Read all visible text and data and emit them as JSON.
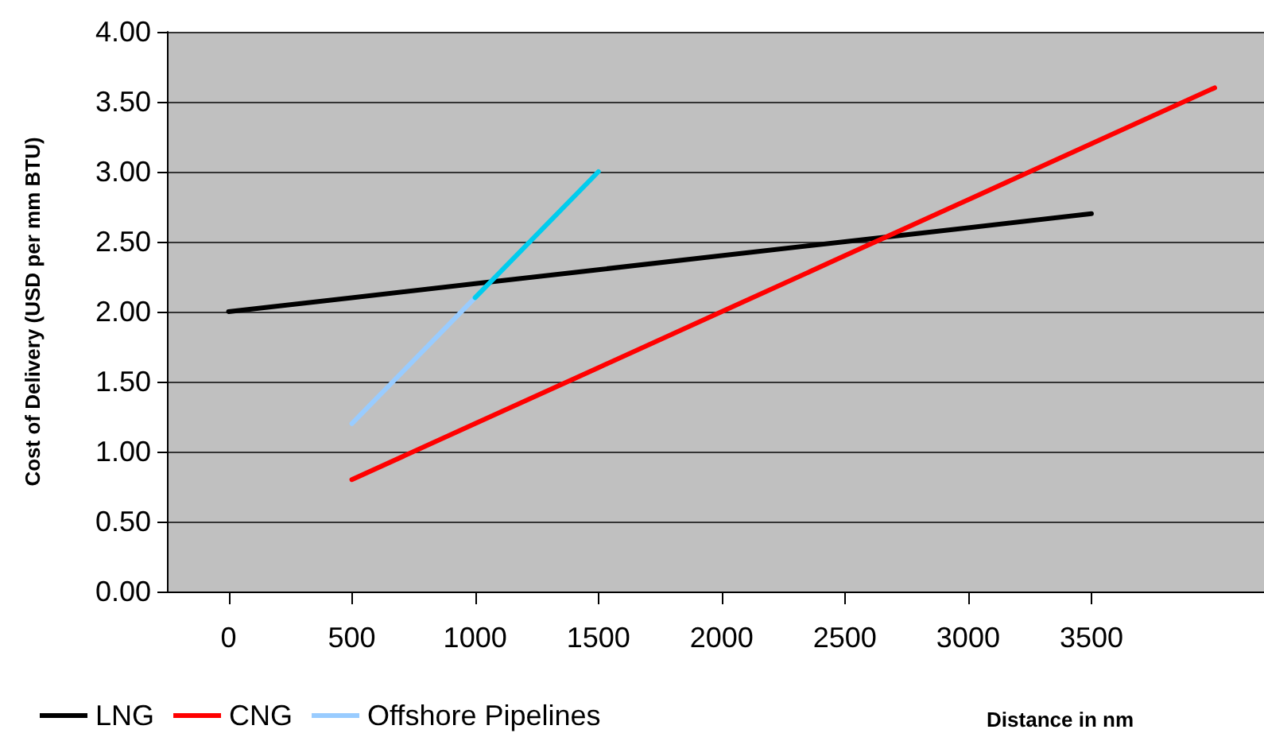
{
  "chart_data": {
    "type": "line",
    "xlabel": "Distance in nm",
    "ylabel": "Cost of Delivery (USD per mm BTU)",
    "series": [
      {
        "name": "LNG",
        "color": "#000000",
        "x": [
          0,
          500,
          1000,
          1500,
          2000,
          2500,
          3000,
          3500
        ],
        "values": [
          2.0,
          2.1,
          2.2,
          2.3,
          2.4,
          2.5,
          2.6,
          2.7
        ]
      },
      {
        "name": "CNG",
        "color": "#ff0000",
        "x": [
          500,
          1000,
          1500,
          2000,
          2500,
          3000,
          3500,
          4000
        ],
        "values": [
          0.8,
          1.2,
          1.6,
          2.0,
          2.4,
          2.8,
          3.2,
          3.6
        ]
      },
      {
        "name": "Offshore Pipelines",
        "color": "#99ccff",
        "x": [
          500,
          1000
        ],
        "values": [
          1.2,
          2.1
        ]
      },
      {
        "color": "#00ccee",
        "x": [
          1000,
          1500
        ],
        "values": [
          2.1,
          3.0
        ]
      }
    ],
    "xlim": [
      -250,
      4200
    ],
    "xticks": [
      0,
      500,
      1000,
      1500,
      2000,
      2500,
      3000,
      3500
    ],
    "ylim": [
      0,
      4
    ],
    "yticks": [
      {
        "value": 0,
        "label": "0.00"
      },
      {
        "value": 0.5,
        "label": "0.50"
      },
      {
        "value": 1,
        "label": "1.00"
      },
      {
        "value": 1.5,
        "label": "1.50"
      },
      {
        "value": 2,
        "label": "2.00"
      },
      {
        "value": 2.5,
        "label": "2.50"
      },
      {
        "value": 3,
        "label": "3.00"
      },
      {
        "value": 3.5,
        "label": "3.50"
      },
      {
        "value": 4,
        "label": "4.00"
      }
    ],
    "grid": "y",
    "legend": "bottom left",
    "marker": "none",
    "line_style": "solid"
  }
}
